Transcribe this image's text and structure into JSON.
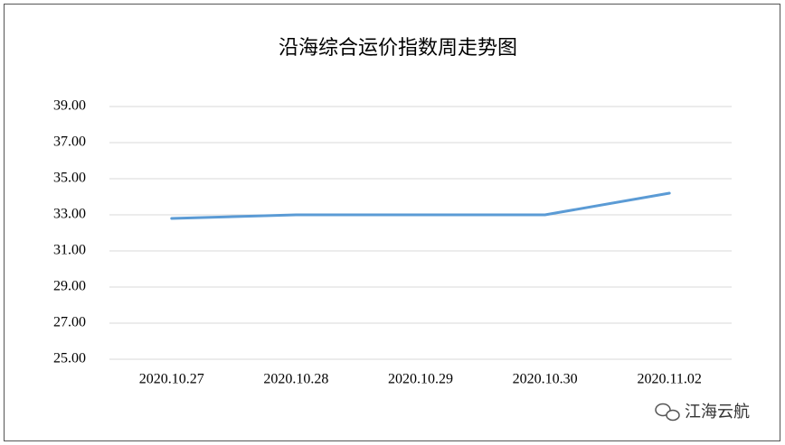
{
  "chart_data": {
    "type": "line",
    "title": "沿海综合运价指数周走势图",
    "categories": [
      "2020.10.27",
      "2020.10.28",
      "2020.10.29",
      "2020.10.30",
      "2020.11.02"
    ],
    "values": [
      32.8,
      33.0,
      33.0,
      33.0,
      34.2
    ],
    "color": "#5b9bd5",
    "ylim": [
      25,
      39
    ],
    "yticks": [
      {
        "value": 25,
        "label": "25.00"
      },
      {
        "value": 27,
        "label": "27.00"
      },
      {
        "value": 29,
        "label": "29.00"
      },
      {
        "value": 31,
        "label": "31.00"
      },
      {
        "value": 33,
        "label": "33.00"
      },
      {
        "value": 35,
        "label": "35.00"
      },
      {
        "value": 37,
        "label": "37.00"
      },
      {
        "value": 39,
        "label": "39.00"
      }
    ],
    "grid": true
  },
  "watermark": "江海云航"
}
